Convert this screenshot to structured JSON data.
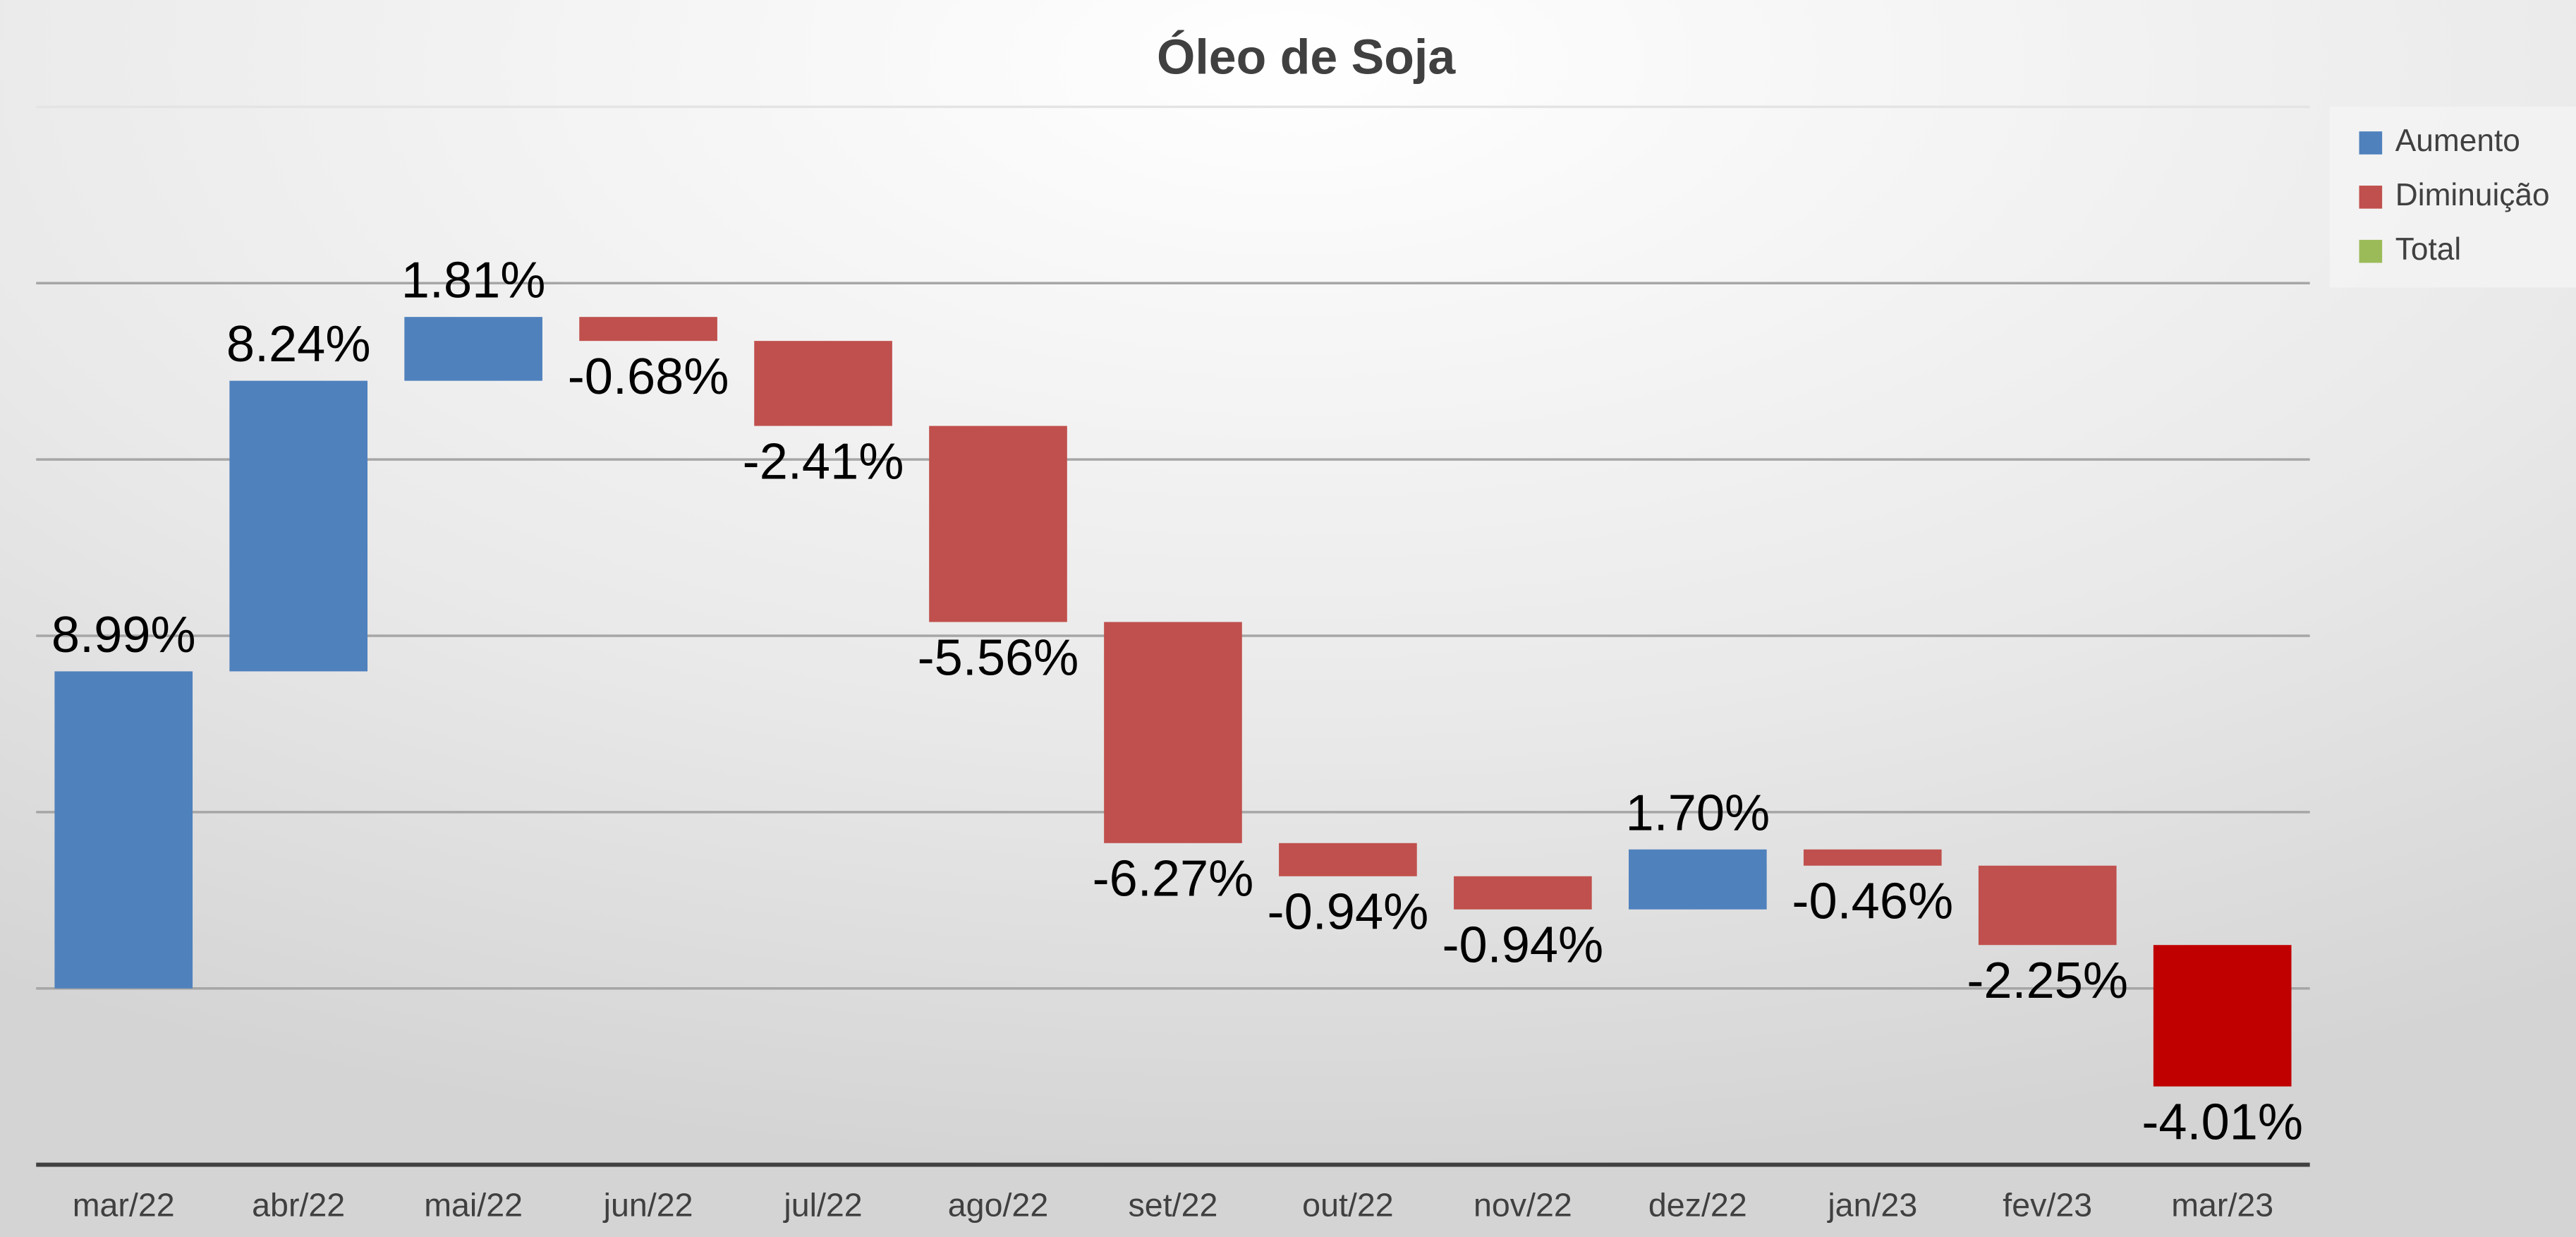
{
  "chart_data": {
    "type": "waterfall",
    "title": "Óleo de Soja",
    "categories": [
      "mar/22",
      "abr/22",
      "mai/22",
      "jun/22",
      "jul/22",
      "ago/22",
      "set/22",
      "out/22",
      "nov/22",
      "dez/22",
      "jan/23",
      "fev/23",
      "mar/23"
    ],
    "values": [
      8.99,
      8.24,
      1.81,
      -0.68,
      -2.41,
      -5.56,
      -6.27,
      -0.94,
      -0.94,
      1.7,
      -0.46,
      -2.25,
      -4.01
    ],
    "value_labels": [
      "8.99%",
      "8.24%",
      "1.81%",
      "-0.68%",
      "-2.41%",
      "-5.56%",
      "-6.27%",
      "-0.94%",
      "-0.94%",
      "1.70%",
      "-0.46%",
      "-2.25%",
      "-4.01%"
    ],
    "colors": [
      "#4f81bd",
      "#4f81bd",
      "#4f81bd",
      "#c0504d",
      "#c0504d",
      "#c0504d",
      "#c0504d",
      "#c0504d",
      "#c0504d",
      "#4f81bd",
      "#c0504d",
      "#c0504d",
      "#c00000"
    ],
    "legend": [
      {
        "name": "Aumento",
        "color": "#4f81bd"
      },
      {
        "name": "Diminuição",
        "color": "#c0504d"
      },
      {
        "name": "Total",
        "color": "#9bbb59"
      }
    ],
    "ylim": [
      -5,
      25
    ],
    "yticks": [
      -5,
      0,
      5,
      10,
      15,
      20,
      25
    ],
    "grid": true
  }
}
